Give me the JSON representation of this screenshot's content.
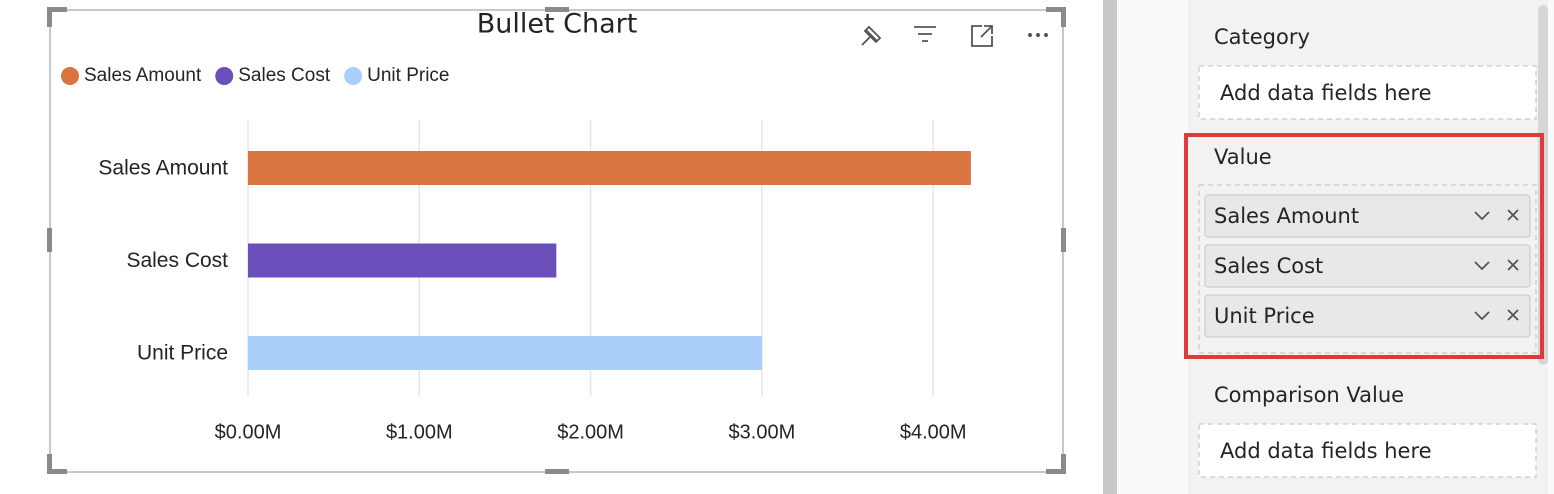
{
  "chart_data": {
    "type": "hbar",
    "title": "Bullet Chart",
    "categories": [
      "Sales Amount",
      "Sales Cost",
      "Unit Price"
    ],
    "series": [
      {
        "name": "Sales Amount",
        "color": "#d9733f"
      },
      {
        "name": "Sales Cost",
        "color": "#6b4fbb"
      },
      {
        "name": "Unit Price",
        "color": "#a9cffa"
      }
    ],
    "values": [
      4220000,
      1800000,
      3000000
    ],
    "xlim": [
      0,
      4500000
    ],
    "xticks": [
      {
        "value": 0,
        "label": "$0.00M"
      },
      {
        "value": 1000000,
        "label": "$1.00M"
      },
      {
        "value": 2000000,
        "label": "$2.00M"
      },
      {
        "value": 3000000,
        "label": "$3.00M"
      },
      {
        "value": 4000000,
        "label": "$4.00M"
      }
    ],
    "grid": true,
    "legend": "top-left"
  },
  "pane": {
    "sections": [
      {
        "title": "Category",
        "placeholder": "Add data fields here"
      },
      {
        "title": "Value",
        "fields": [
          "Sales Amount",
          "Sales Cost",
          "Unit Price"
        ]
      },
      {
        "title": "Comparison Value",
        "placeholder": "Add data fields here"
      }
    ]
  }
}
